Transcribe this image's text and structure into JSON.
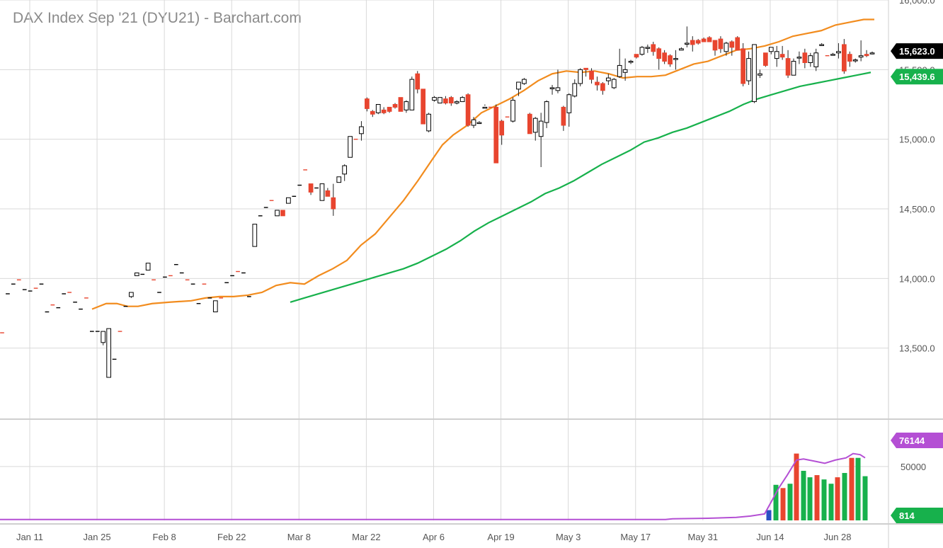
{
  "title": "DAX Index Sep '21 (DYU21) - Barchart.com",
  "colors": {
    "up_body": "#ffffff",
    "up_stroke": "#000000",
    "down": "#e8452f",
    "ma_fast": "#f28c1e",
    "ma_slow": "#17b14c",
    "volume_up": "#17b14c",
    "volume_down": "#e8452f",
    "volume_blue": "#2b4fc4",
    "volume_avg": "#b44fd4",
    "grid": "#d9d9d9"
  },
  "chart_data": {
    "type": "candlestick",
    "x_tick_labels": [
      "Jan 11",
      "Jan 25",
      "Feb 8",
      "Feb 22",
      "Mar 8",
      "Mar 22",
      "Apr 6",
      "Apr 19",
      "May 3",
      "May 17",
      "May 31",
      "Jun 14",
      "Jun 28"
    ],
    "y_price_ticks": [
      "16,000.0",
      "15,500.0",
      "15,000.0",
      "14,500.0",
      "14,000.0",
      "13,500.0"
    ],
    "y_price_range": [
      13000,
      16000
    ],
    "y_volume_ticks": [
      "50000"
    ],
    "y_volume_range": [
      0,
      90000
    ],
    "price_badges": [
      {
        "label": "15,623.0",
        "value": 15623,
        "color": "#000000"
      },
      {
        "label": "15,439.6",
        "value": 15439.6,
        "color": "#17b14c"
      }
    ],
    "volume_badges": [
      {
        "label": "76144",
        "value": 76144,
        "color": "#b44fd4"
      },
      {
        "label": "814",
        "value": 814,
        "color": "#17b14c"
      }
    ],
    "candles": [
      [
        13610,
        13610,
        13610,
        13610
      ],
      [
        13890,
        13890,
        13890,
        13890
      ],
      [
        13960,
        13960,
        13960,
        13960
      ],
      [
        13990,
        13990,
        13990,
        13990
      ],
      [
        13920,
        13920,
        13920,
        13920
      ],
      [
        13910,
        13910,
        13910,
        13910
      ],
      [
        13930,
        13930,
        13930,
        13930
      ],
      [
        13960,
        13960,
        13960,
        13960
      ],
      [
        13760,
        13760,
        13760,
        13760
      ],
      [
        13810,
        13810,
        13810,
        13810
      ],
      [
        13790,
        13790,
        13790,
        13790
      ],
      [
        13890,
        13890,
        13890,
        13890
      ],
      [
        13900,
        13900,
        13900,
        13900
      ],
      [
        13830,
        13830,
        13830,
        13830
      ],
      [
        13780,
        13780,
        13780,
        13780
      ],
      [
        13860,
        13860,
        13860,
        13860
      ],
      [
        13620,
        13620,
        13620,
        13620
      ],
      [
        13620,
        13620,
        13620,
        13620
      ],
      [
        13540,
        13620,
        13520,
        13620
      ],
      [
        13290,
        13640,
        13290,
        13640
      ],
      [
        13420,
        13420,
        13420,
        13420
      ],
      [
        13620,
        13620,
        13620,
        13620
      ],
      [
        13800,
        13800,
        13800,
        13800
      ],
      [
        13870,
        13900,
        13860,
        13890
      ],
      [
        14020,
        14040,
        14020,
        14020
      ],
      [
        14030,
        14030,
        14030,
        14030
      ],
      [
        14060,
        14110,
        14060,
        14110
      ],
      [
        13990,
        13990,
        13990,
        13990
      ],
      [
        13900,
        13900,
        13900,
        13900
      ],
      [
        14010,
        14010,
        14010,
        14010
      ],
      [
        14020,
        14020,
        14020,
        14020
      ],
      [
        14100,
        14100,
        14100,
        14100
      ],
      [
        14040,
        14040,
        14040,
        14040
      ],
      [
        13990,
        13990,
        13990,
        13990
      ],
      [
        13960,
        13960,
        13960,
        13960
      ],
      [
        13820,
        13820,
        13820,
        13820
      ],
      [
        13960,
        13960,
        13960,
        13960
      ],
      [
        13860,
        13860,
        13860,
        13860
      ],
      [
        13760,
        13840,
        13760,
        13840
      ],
      [
        13860,
        13860,
        13860,
        13860
      ],
      [
        13970,
        13970,
        13970,
        13970
      ],
      [
        14020,
        14020,
        14020,
        14020
      ],
      [
        14050,
        14050,
        14050,
        14050
      ],
      [
        14040,
        14040,
        14040,
        14040
      ],
      [
        13870,
        13870,
        13870,
        13870
      ],
      [
        14230,
        14390,
        14230,
        14390
      ],
      [
        14450,
        14450,
        14450,
        14450
      ],
      [
        14510,
        14510,
        14510,
        14510
      ],
      [
        14560,
        14560,
        14560,
        14560
      ],
      [
        14450,
        14490,
        14450,
        14490
      ],
      [
        14490,
        14450,
        14450,
        14490
      ],
      [
        14540,
        14580,
        14540,
        14580
      ],
      [
        14590,
        14590,
        14590,
        14590
      ],
      [
        14670,
        14670,
        14670,
        14670
      ],
      [
        14780,
        14780,
        14780,
        14780
      ],
      [
        14680,
        14620,
        14600,
        14680
      ],
      [
        14650,
        14650,
        14650,
        14650
      ],
      [
        14560,
        14680,
        14560,
        14680
      ],
      [
        14630,
        14590,
        14590,
        14650
      ],
      [
        14580,
        14500,
        14450,
        14680
      ],
      [
        14690,
        14730,
        14690,
        14720
      ],
      [
        14750,
        14810,
        14700,
        14820
      ],
      [
        14870,
        15020,
        14870,
        15020
      ],
      [
        15000,
        15000,
        15000,
        15000
      ],
      [
        15040,
        15090,
        14990,
        15130
      ],
      [
        15290,
        15220,
        15200,
        15300
      ],
      [
        15200,
        15180,
        15160,
        15210
      ],
      [
        15190,
        15250,
        15180,
        15250
      ],
      [
        15210,
        15190,
        15180,
        15230
      ],
      [
        15230,
        15200,
        15190,
        15230
      ],
      [
        15250,
        15230,
        15220,
        15260
      ],
      [
        15300,
        15200,
        15200,
        15300
      ],
      [
        15210,
        15270,
        15190,
        15280
      ],
      [
        15210,
        15430,
        15210,
        15450
      ],
      [
        15470,
        15360,
        15330,
        15490
      ],
      [
        15360,
        15110,
        15110,
        15360
      ],
      [
        15060,
        15180,
        15050,
        15190
      ],
      [
        15280,
        15300,
        15270,
        15310
      ],
      [
        15260,
        15300,
        15260,
        15300
      ],
      [
        15290,
        15260,
        15250,
        15310
      ],
      [
        15300,
        15260,
        15240,
        15310
      ],
      [
        15260,
        15270,
        15250,
        15280
      ],
      [
        15270,
        15300,
        15270,
        15310
      ],
      [
        15320,
        15100,
        15090,
        15330
      ],
      [
        15100,
        15140,
        15080,
        15160
      ],
      [
        15120,
        15120,
        15110,
        15130
      ],
      [
        15230,
        15230,
        15240,
        15250
      ],
      [
        15230,
        15230,
        15230,
        15230
      ],
      [
        15230,
        14830,
        14830,
        15250
      ],
      [
        15130,
        15030,
        14960,
        15140
      ],
      [
        15160,
        15160,
        15160,
        15160
      ],
      [
        15130,
        15280,
        15120,
        15300
      ],
      [
        15360,
        15410,
        15310,
        15410
      ],
      [
        15400,
        15430,
        15390,
        15440
      ],
      [
        15180,
        15040,
        15040,
        15190
      ],
      [
        15050,
        15150,
        14990,
        15160
      ],
      [
        15020,
        15130,
        14800,
        15190
      ],
      [
        15120,
        15270,
        15080,
        15280
      ],
      [
        15370,
        15370,
        15320,
        15390
      ],
      [
        15350,
        15370,
        15330,
        15500
      ],
      [
        15230,
        15100,
        15060,
        15240
      ],
      [
        15190,
        15320,
        15090,
        15330
      ],
      [
        15310,
        15400,
        15300,
        15430
      ],
      [
        15400,
        15500,
        15380,
        15510
      ],
      [
        15510,
        15500,
        15450,
        15510
      ],
      [
        15490,
        15430,
        15400,
        15510
      ],
      [
        15410,
        15390,
        15350,
        15450
      ],
      [
        15400,
        15350,
        15320,
        15410
      ],
      [
        15420,
        15440,
        15390,
        15470
      ],
      [
        15370,
        15430,
        15360,
        15440
      ],
      [
        15450,
        15530,
        15440,
        15650
      ],
      [
        15480,
        15500,
        15420,
        15580
      ],
      [
        15560,
        15560,
        15540,
        15570
      ],
      [
        15610,
        15590,
        15580,
        15590
      ],
      [
        15610,
        15660,
        15600,
        15670
      ],
      [
        15660,
        15660,
        15620,
        15680
      ],
      [
        15680,
        15630,
        15600,
        15700
      ],
      [
        15650,
        15580,
        15500,
        15660
      ],
      [
        15620,
        15560,
        15540,
        15640
      ],
      [
        15600,
        15540,
        15520,
        15610
      ],
      [
        15580,
        15580,
        15500,
        15640
      ],
      [
        15640,
        15650,
        15640,
        15660
      ],
      [
        15690,
        15690,
        15660,
        15810
      ],
      [
        15710,
        15680,
        15630,
        15740
      ],
      [
        15710,
        15690,
        15680,
        15720
      ],
      [
        15720,
        15700,
        15700,
        15730
      ],
      [
        15730,
        15700,
        15700,
        15740
      ],
      [
        15710,
        15640,
        15600,
        15710
      ],
      [
        15720,
        15650,
        15620,
        15740
      ],
      [
        15630,
        15690,
        15600,
        15700
      ],
      [
        15700,
        15660,
        15600,
        15710
      ],
      [
        15730,
        15640,
        15640,
        15740
      ],
      [
        15650,
        15400,
        15380,
        15690
      ],
      [
        15420,
        15580,
        15390,
        15630
      ],
      [
        15270,
        15680,
        15260,
        15680
      ],
      [
        15460,
        15470,
        15440,
        15500
      ],
      [
        15620,
        15530,
        15520,
        15620
      ],
      [
        15630,
        15660,
        15610,
        15650
      ],
      [
        15580,
        15630,
        15520,
        15670
      ],
      [
        15610,
        15590,
        15570,
        15670
      ],
      [
        15580,
        15460,
        15440,
        15640
      ],
      [
        15460,
        15560,
        15460,
        15580
      ],
      [
        15590,
        15590,
        15540,
        15630
      ],
      [
        15620,
        15550,
        15510,
        15650
      ],
      [
        15550,
        15600,
        15520,
        15620
      ],
      [
        15520,
        15620,
        15490,
        15650
      ],
      [
        15680,
        15680,
        15670,
        15690
      ],
      [
        15600,
        15600,
        15600,
        15600
      ],
      [
        15610,
        15610,
        15600,
        15620
      ],
      [
        15620,
        15630,
        15580,
        15690
      ],
      [
        15680,
        15490,
        15470,
        15720
      ],
      [
        15610,
        15560,
        15520,
        15630
      ],
      [
        15570,
        15570,
        15550,
        15580
      ],
      [
        15590,
        15600,
        15560,
        15710
      ],
      [
        15610,
        15600,
        15590,
        15640
      ],
      [
        15620,
        15620,
        15610,
        15630
      ]
    ],
    "ma_fast": [
      [
        130,
        13780
      ],
      [
        150,
        13820
      ],
      [
        165,
        13820
      ],
      [
        180,
        13800
      ],
      [
        195,
        13800
      ],
      [
        215,
        13820
      ],
      [
        240,
        13830
      ],
      [
        270,
        13840
      ],
      [
        290,
        13860
      ],
      [
        310,
        13870
      ],
      [
        330,
        13870
      ],
      [
        350,
        13880
      ],
      [
        370,
        13900
      ],
      [
        390,
        13950
      ],
      [
        410,
        13970
      ],
      [
        430,
        13960
      ],
      [
        450,
        14020
      ],
      [
        470,
        14070
      ],
      [
        490,
        14130
      ],
      [
        510,
        14240
      ],
      [
        530,
        14320
      ],
      [
        550,
        14440
      ],
      [
        570,
        14560
      ],
      [
        590,
        14700
      ],
      [
        610,
        14850
      ],
      [
        625,
        14960
      ],
      [
        640,
        15030
      ],
      [
        660,
        15100
      ],
      [
        680,
        15190
      ],
      [
        700,
        15240
      ],
      [
        720,
        15290
      ],
      [
        740,
        15350
      ],
      [
        760,
        15420
      ],
      [
        780,
        15470
      ],
      [
        800,
        15490
      ],
      [
        820,
        15480
      ],
      [
        840,
        15490
      ],
      [
        860,
        15470
      ],
      [
        880,
        15440
      ],
      [
        900,
        15450
      ],
      [
        920,
        15450
      ],
      [
        940,
        15460
      ],
      [
        960,
        15500
      ],
      [
        980,
        15540
      ],
      [
        1000,
        15560
      ],
      [
        1020,
        15600
      ],
      [
        1040,
        15640
      ],
      [
        1060,
        15650
      ],
      [
        1080,
        15670
      ],
      [
        1100,
        15700
      ],
      [
        1120,
        15740
      ],
      [
        1140,
        15760
      ],
      [
        1160,
        15780
      ],
      [
        1180,
        15820
      ],
      [
        1200,
        15840
      ],
      [
        1220,
        15860
      ],
      [
        1235,
        15860
      ]
    ],
    "ma_slow": [
      [
        410,
        13830
      ],
      [
        430,
        13860
      ],
      [
        450,
        13890
      ],
      [
        470,
        13920
      ],
      [
        490,
        13950
      ],
      [
        510,
        13980
      ],
      [
        530,
        14010
      ],
      [
        550,
        14040
      ],
      [
        570,
        14070
      ],
      [
        590,
        14110
      ],
      [
        610,
        14160
      ],
      [
        630,
        14210
      ],
      [
        650,
        14270
      ],
      [
        670,
        14340
      ],
      [
        690,
        14400
      ],
      [
        710,
        14450
      ],
      [
        730,
        14500
      ],
      [
        750,
        14550
      ],
      [
        770,
        14610
      ],
      [
        790,
        14650
      ],
      [
        810,
        14700
      ],
      [
        830,
        14760
      ],
      [
        850,
        14820
      ],
      [
        870,
        14870
      ],
      [
        890,
        14920
      ],
      [
        910,
        14980
      ],
      [
        930,
        15010
      ],
      [
        950,
        15050
      ],
      [
        970,
        15080
      ],
      [
        990,
        15120
      ],
      [
        1010,
        15160
      ],
      [
        1030,
        15200
      ],
      [
        1050,
        15250
      ],
      [
        1070,
        15290
      ],
      [
        1090,
        15320
      ],
      [
        1110,
        15350
      ],
      [
        1130,
        15380
      ],
      [
        1150,
        15400
      ],
      [
        1170,
        15420
      ],
      [
        1190,
        15440
      ],
      [
        1210,
        15460
      ],
      [
        1230,
        15480
      ]
    ]
  }
}
